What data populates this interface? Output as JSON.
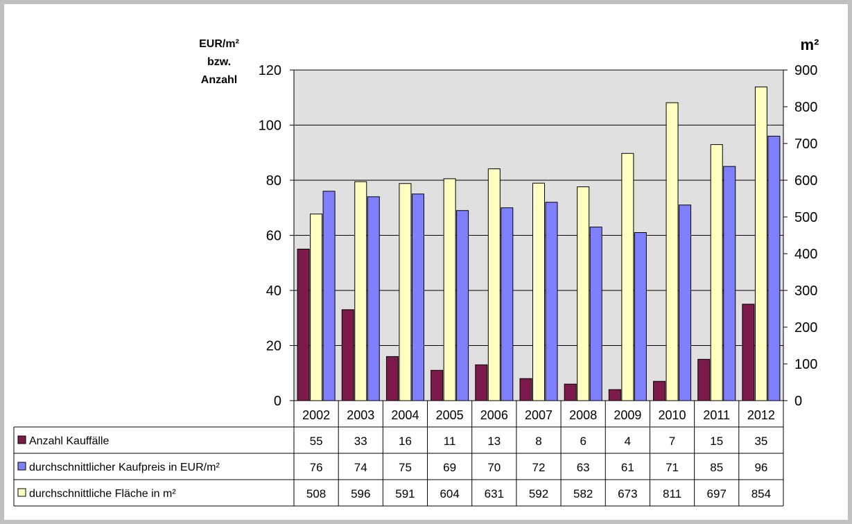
{
  "chart_data": {
    "type": "bar",
    "categories": [
      "2002",
      "2003",
      "2004",
      "2005",
      "2006",
      "2007",
      "2008",
      "2009",
      "2010",
      "2011",
      "2012"
    ],
    "y_left": {
      "label_lines": [
        "EUR/m²",
        "bzw.",
        "Anzahl"
      ],
      "ylim": [
        0,
        120
      ],
      "ticks": [
        0,
        20,
        40,
        60,
        80,
        100,
        120
      ]
    },
    "y_right": {
      "label": "m²",
      "ylim": [
        0,
        900
      ],
      "ticks": [
        0,
        100,
        200,
        300,
        400,
        500,
        600,
        700,
        800,
        900
      ]
    },
    "grid": true,
    "plot_background": "#e0e0e0",
    "series": [
      {
        "name": "Anzahl Kauffälle",
        "axis": "left",
        "color": "#7b1a4b",
        "values": [
          55,
          33,
          16,
          11,
          13,
          8,
          6,
          4,
          7,
          15,
          35
        ]
      },
      {
        "name": "durchschnittliche Fläche in m²",
        "axis": "right",
        "color": "#ffffc0",
        "values": [
          508,
          596,
          591,
          604,
          631,
          592,
          582,
          673,
          811,
          697,
          854
        ]
      },
      {
        "name": "durchschnittlicher Kaufpreis in EUR/m²",
        "axis": "left",
        "color": "#8080ff",
        "values": [
          76,
          74,
          75,
          69,
          70,
          72,
          63,
          61,
          71,
          85,
          96
        ]
      }
    ],
    "table_rows": [
      {
        "series_index": 0
      },
      {
        "series_index": 2
      },
      {
        "series_index": 1
      }
    ]
  }
}
